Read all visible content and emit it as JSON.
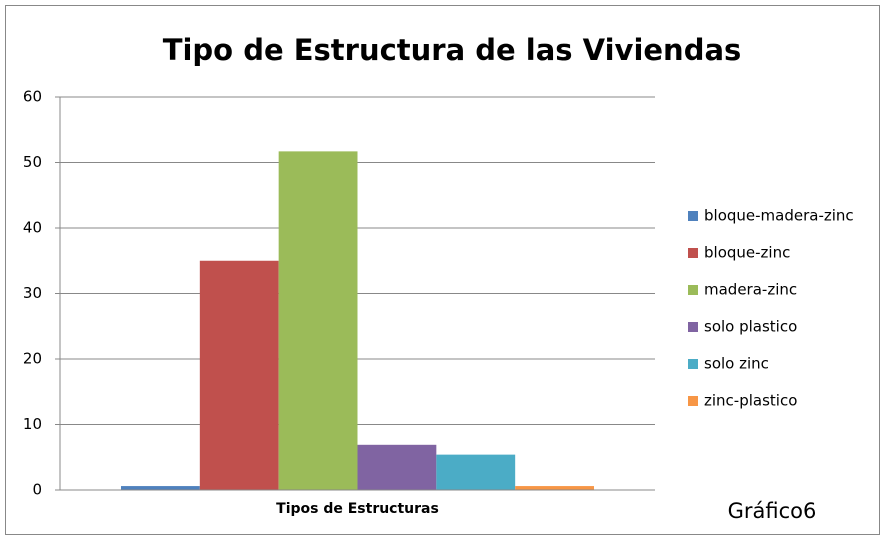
{
  "chart_data": {
    "type": "bar",
    "title": "Tipo de Estructura de las Viviendas",
    "categories": [
      "Tipos de Estructuras"
    ],
    "series": [
      {
        "name": "bloque-madera-zinc",
        "color": "#4f81bd",
        "values": [
          0.6
        ]
      },
      {
        "name": "bloque-zinc",
        "color": "#c0504d",
        "values": [
          35
        ]
      },
      {
        "name": "madera-zinc",
        "color": "#9bbb59",
        "values": [
          51.7
        ]
      },
      {
        "name": "solo plastico",
        "color": "#8064a2",
        "values": [
          6.9
        ]
      },
      {
        "name": "solo zinc",
        "color": "#4bacc6",
        "values": [
          5.4
        ]
      },
      {
        "name": "zinc-plastico",
        "color": "#f79646",
        "values": [
          0.6
        ]
      }
    ],
    "ylim": [
      0,
      60
    ],
    "yticks": [
      0,
      10,
      20,
      30,
      40,
      50,
      60
    ],
    "grid": true,
    "legend": "right",
    "annotation": "Gráfico6"
  }
}
